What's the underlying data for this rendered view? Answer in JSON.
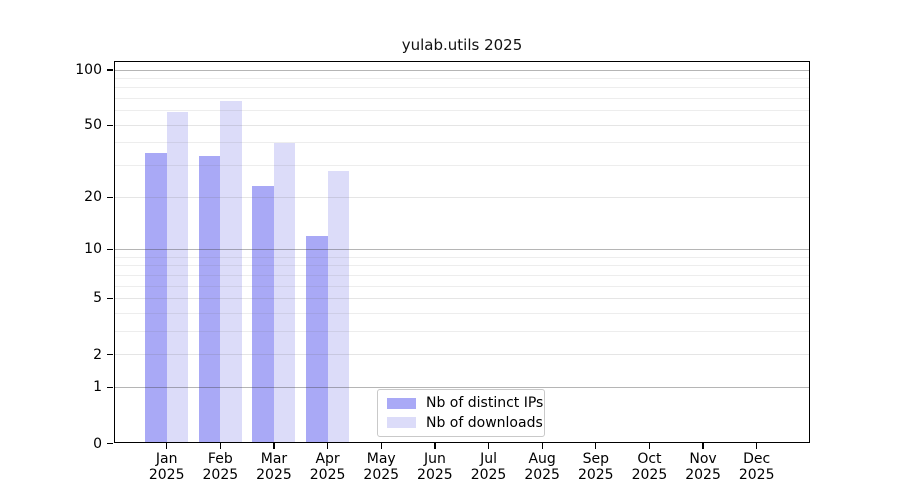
{
  "title": "yulab.utils 2025",
  "chart_data": {
    "type": "bar",
    "title": "yulab.utils 2025",
    "scale": "log1p",
    "year": "2025",
    "months": [
      "Jan",
      "Feb",
      "Mar",
      "Apr",
      "May",
      "Jun",
      "Jul",
      "Aug",
      "Sep",
      "Oct",
      "Nov",
      "Dec"
    ],
    "series": [
      {
        "name": "Nb of distinct IPs",
        "color": "#a9a9f6",
        "values": [
          35,
          34,
          23,
          12,
          null,
          null,
          null,
          null,
          null,
          null,
          null,
          null
        ]
      },
      {
        "name": "Nb of downloads",
        "color": "#dcdcf9",
        "values": [
          59,
          68,
          40,
          28,
          null,
          null,
          null,
          null,
          null,
          null,
          null,
          null
        ]
      }
    ],
    "y_ticks": [
      0,
      1,
      2,
      5,
      10,
      20,
      50,
      100
    ],
    "y_major_gridlines_strong": [
      1,
      10,
      100
    ],
    "y_major_gridlines_light": [
      2,
      5,
      20,
      50
    ],
    "y_minor_gridlines": [
      3,
      4,
      6,
      7,
      8,
      9,
      30,
      40,
      60,
      70,
      80,
      90
    ],
    "ylim": [
      0,
      112
    ],
    "grid": true,
    "legend_position": "inside-bottom-center"
  }
}
